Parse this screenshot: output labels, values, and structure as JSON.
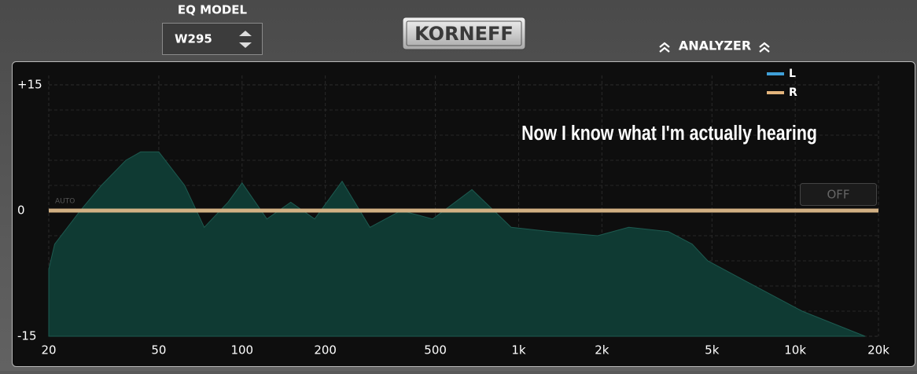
{
  "header": {
    "eq_model_label": "EQ MODEL",
    "eq_model_value": "W295",
    "brand": "KORNEFF",
    "analyzer": "ANALYZER"
  },
  "chart_data": {
    "type": "area",
    "annotation": "Now I know what I'm actually hearing",
    "auto_label": "AUTO",
    "off_button": "OFF",
    "log_x": true,
    "xlim": [
      20,
      20000
    ],
    "xticks": [
      20,
      50,
      100,
      200,
      500,
      {
        "value": 1000,
        "label": "1k"
      },
      {
        "value": 2000,
        "label": "2k"
      },
      {
        "value": 5000,
        "label": "5k"
      },
      {
        "value": 10000,
        "label": "10k"
      },
      {
        "value": 20000,
        "label": "20k"
      }
    ],
    "ylim": [
      -15,
      15
    ],
    "yticks": [
      {
        "value": 15,
        "label": "+15"
      },
      0,
      -15
    ],
    "grid": true,
    "spectrum": {
      "color": "#0f3a33",
      "x": [
        20,
        21,
        26,
        31,
        38,
        43,
        50,
        62,
        73,
        89,
        100,
        123,
        150,
        183,
        230,
        290,
        376,
        489,
        678,
        940,
        1300,
        1930,
        2500,
        3480,
        4240,
        4830,
        6270,
        8150,
        10600,
        13770,
        17900
      ],
      "values": [
        -7,
        -4,
        0,
        3,
        6,
        7,
        7,
        3,
        -2,
        1,
        3.3,
        -1,
        1,
        -1,
        3.5,
        -2,
        0,
        -1,
        2.5,
        -2,
        -2.5,
        -3,
        -2,
        -2.5,
        -4,
        -6,
        -8,
        -10,
        -12,
        -13.5,
        -15
      ]
    },
    "curve_x": [
      20,
      20000
    ],
    "series": [
      {
        "name": "L",
        "color": "#3fa0d8",
        "values": [
          0,
          0
        ]
      },
      {
        "name": "R",
        "color": "#e3b47c",
        "values": [
          0,
          0
        ]
      }
    ]
  }
}
